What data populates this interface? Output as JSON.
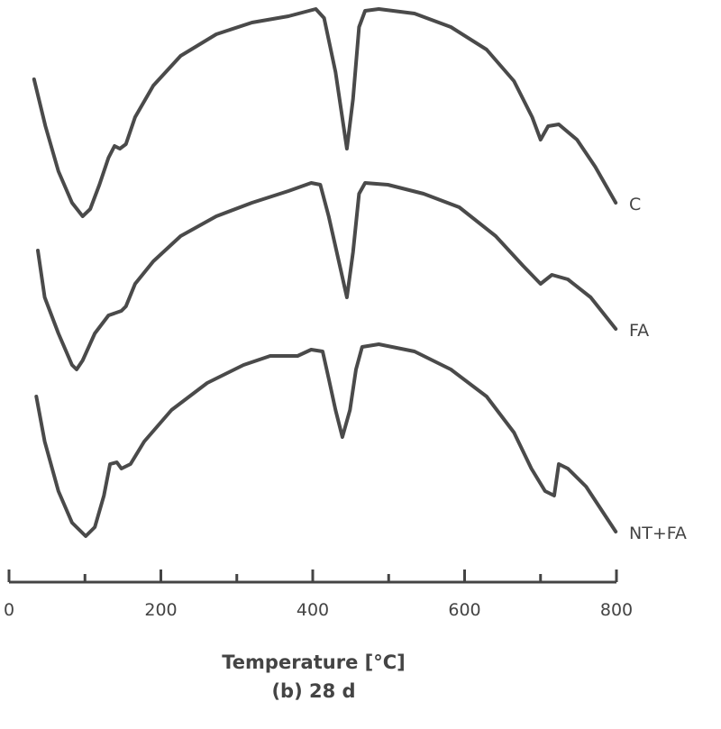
{
  "chart_data": {
    "type": "line",
    "title": "(b) 28 d",
    "xlabel": "Temperature [°C]",
    "ylabel": "",
    "xlim": [
      0,
      800
    ],
    "xticks": [
      0,
      100,
      200,
      300,
      400,
      500,
      600,
      700,
      800
    ],
    "xtick_labels": [
      "0",
      "200",
      "400",
      "600",
      "800"
    ],
    "grid": false,
    "legend": "inline labels at right end of each curve",
    "series": [
      {
        "name": "C",
        "x": [
          33,
          48,
          65,
          83,
          97,
          107,
          119,
          131,
          139,
          146,
          154,
          166,
          190,
          226,
          273,
          320,
          368,
          404,
          415,
          430,
          445,
          453,
          461,
          469,
          487,
          534,
          582,
          629,
          665,
          689,
          700,
          710,
          724,
          748,
          772,
          799
        ],
        "y": [
          5.12,
          4.6,
          4.1,
          3.75,
          3.6,
          3.68,
          3.95,
          4.25,
          4.38,
          4.35,
          4.4,
          4.7,
          5.05,
          5.38,
          5.62,
          5.75,
          5.82,
          5.9,
          5.8,
          5.2,
          4.35,
          4.9,
          5.7,
          5.88,
          5.9,
          5.85,
          5.7,
          5.45,
          5.1,
          4.7,
          4.45,
          4.6,
          4.62,
          4.45,
          4.15,
          3.75
        ]
      },
      {
        "name": "FA",
        "x": [
          38,
          47,
          65,
          83,
          89,
          97,
          113,
          131,
          148,
          154,
          166,
          190,
          226,
          273,
          320,
          368,
          398,
          410,
          421,
          437,
          445,
          453,
          461,
          469,
          499,
          546,
          593,
          641,
          677,
          700,
          715,
          736,
          766,
          799
        ],
        "y": [
          3.22,
          2.7,
          2.3,
          1.95,
          1.9,
          2.0,
          2.3,
          2.5,
          2.55,
          2.6,
          2.85,
          3.1,
          3.38,
          3.6,
          3.75,
          3.88,
          3.97,
          3.95,
          3.6,
          3.0,
          2.7,
          3.2,
          3.85,
          3.97,
          3.95,
          3.85,
          3.7,
          3.38,
          3.05,
          2.85,
          2.95,
          2.9,
          2.7,
          2.35
        ]
      },
      {
        "name": "NT+FA",
        "x": [
          36,
          47,
          65,
          83,
          101,
          113,
          125,
          133,
          142,
          148,
          160,
          178,
          214,
          261,
          309,
          344,
          380,
          398,
          413,
          421,
          430,
          439,
          449,
          457,
          465,
          487,
          534,
          582,
          629,
          665,
          688,
          706,
          718,
          724,
          736,
          760,
          799
        ],
        "y": [
          1.6,
          1.1,
          0.55,
          0.2,
          0.05,
          0.15,
          0.5,
          0.85,
          0.87,
          0.8,
          0.85,
          1.1,
          1.45,
          1.75,
          1.95,
          2.05,
          2.05,
          2.12,
          2.1,
          1.8,
          1.45,
          1.15,
          1.45,
          1.9,
          2.15,
          2.18,
          2.1,
          1.9,
          1.6,
          1.2,
          0.8,
          0.55,
          0.5,
          0.85,
          0.8,
          0.6,
          0.1
        ]
      }
    ]
  }
}
